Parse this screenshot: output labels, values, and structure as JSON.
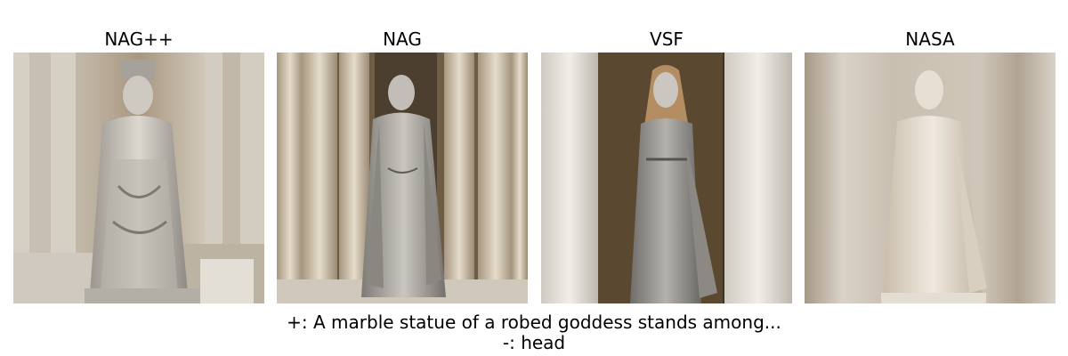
{
  "panels": [
    {
      "title": "NAG++"
    },
    {
      "title": "NAG"
    },
    {
      "title": "VSF"
    },
    {
      "title": "NASA"
    }
  ],
  "caption": {
    "positive": "+: A marble statue of a robed goddess stands among...",
    "negative": "-: head"
  }
}
